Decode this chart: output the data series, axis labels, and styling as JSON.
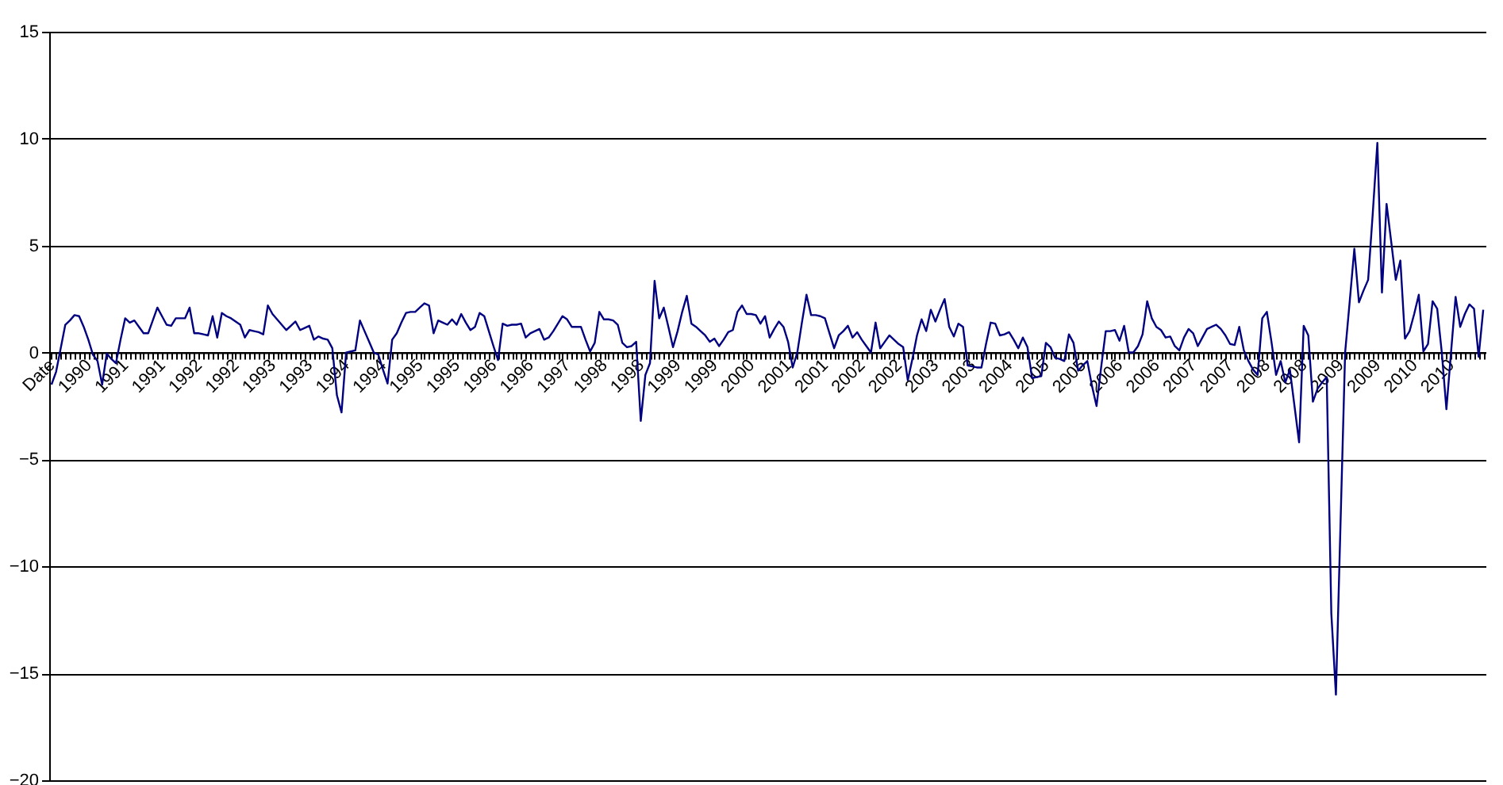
{
  "chart_data": {
    "type": "line",
    "categories": [
      "Date",
      null,
      null,
      null,
      null,
      null,
      null,
      null,
      "1990",
      null,
      null,
      null,
      null,
      null,
      null,
      null,
      "1991",
      null,
      null,
      null,
      null,
      null,
      null,
      null,
      "1991",
      null,
      null,
      null,
      null,
      null,
      null,
      null,
      "1992",
      null,
      null,
      null,
      null,
      null,
      null,
      null,
      "1992",
      null,
      null,
      null,
      null,
      null,
      null,
      null,
      "1993",
      null,
      null,
      null,
      null,
      null,
      null,
      null,
      "1993",
      null,
      null,
      null,
      null,
      null,
      null,
      null,
      "1994",
      null,
      null,
      null,
      null,
      null,
      null,
      null,
      "1994",
      null,
      null,
      null,
      null,
      null,
      null,
      null,
      "1995",
      null,
      null,
      null,
      null,
      null,
      null,
      null,
      "1995",
      null,
      null,
      null,
      null,
      null,
      null,
      null,
      "1996",
      null,
      null,
      null,
      null,
      null,
      null,
      null,
      "1996",
      null,
      null,
      null,
      null,
      null,
      null,
      null,
      "1997",
      null,
      null,
      null,
      null,
      null,
      null,
      null,
      "1998",
      null,
      null,
      null,
      null,
      null,
      null,
      null,
      "1998",
      null,
      null,
      null,
      null,
      null,
      null,
      null,
      "1999",
      null,
      null,
      null,
      null,
      null,
      null,
      null,
      "1999",
      null,
      null,
      null,
      null,
      null,
      null,
      null,
      "2000",
      null,
      null,
      null,
      null,
      null,
      null,
      null,
      "2001",
      null,
      null,
      null,
      null,
      null,
      null,
      null,
      "2001",
      null,
      null,
      null,
      null,
      null,
      null,
      null,
      "2002",
      null,
      null,
      null,
      null,
      null,
      null,
      null,
      "2002",
      null,
      null,
      null,
      null,
      null,
      null,
      null,
      "2003",
      null,
      null,
      null,
      null,
      null,
      null,
      null,
      "2003",
      null,
      null,
      null,
      null,
      null,
      null,
      null,
      "2004",
      null,
      null,
      null,
      null,
      null,
      null,
      null,
      "2005",
      null,
      null,
      null,
      null,
      null,
      null,
      null,
      "2005",
      null,
      null,
      null,
      null,
      null,
      null,
      null,
      "2006",
      null,
      null,
      null,
      null,
      null,
      null,
      null,
      "2006",
      null,
      null,
      null,
      null,
      null,
      null,
      null,
      "2007",
      null,
      null,
      null,
      null,
      null,
      null,
      null,
      "2007",
      null,
      null,
      null,
      null,
      null,
      null,
      null,
      "2008",
      null,
      null,
      null,
      null,
      null,
      null,
      null,
      "2008",
      null,
      null,
      null,
      null,
      null,
      null,
      null,
      "2009",
      null,
      null,
      null,
      null,
      null,
      null,
      null,
      "2009",
      null,
      null,
      null,
      null,
      null,
      null,
      null,
      "2010",
      null,
      null,
      null,
      null,
      null,
      null,
      null,
      "2010",
      null,
      null,
      null,
      null,
      null,
      null,
      null
    ],
    "series": [
      {
        "color": "#000080",
        "values": [
          -1.5,
          -0.9,
          0.2,
          1.3,
          1.5,
          1.75,
          1.7,
          1.2,
          0.6,
          -0.1,
          -0.4,
          -1.5,
          -0.05,
          -0.3,
          -0.5,
          0.6,
          1.6,
          1.4,
          1.5,
          1.2,
          0.9,
          0.9,
          1.5,
          2.1,
          1.7,
          1.3,
          1.25,
          1.6,
          1.6,
          1.6,
          2.1,
          0.9,
          0.9,
          0.85,
          0.8,
          1.7,
          0.7,
          1.85,
          1.7,
          1.6,
          1.45,
          1.3,
          0.7,
          1.05,
          1.0,
          0.95,
          0.85,
          2.2,
          1.8,
          1.55,
          1.3,
          1.05,
          1.25,
          1.45,
          1.05,
          1.15,
          1.25,
          0.6,
          0.75,
          0.65,
          0.6,
          0.2,
          -2.0,
          -2.8,
          0,
          0.05,
          0.1,
          1.5,
          1.0,
          0.5,
          0,
          -0.1,
          -0.8,
          -1.45,
          0.6,
          0.9,
          1.4,
          1.85,
          1.9,
          1.9,
          2.1,
          2.3,
          2.2,
          0.9,
          1.5,
          1.4,
          1.3,
          1.55,
          1.3,
          1.8,
          1.4,
          1.05,
          1.2,
          1.85,
          1.7,
          1.0,
          0.3,
          -0.35,
          1.35,
          1.25,
          1.3,
          1.3,
          1.35,
          0.7,
          0.9,
          1.0,
          1.1,
          0.6,
          0.7,
          1.0,
          1.35,
          1.7,
          1.55,
          1.2,
          1.2,
          1.2,
          0.6,
          0.05,
          0.45,
          1.9,
          1.55,
          1.55,
          1.5,
          1.3,
          0.45,
          0.25,
          0.3,
          0.5,
          -3.2,
          -1.05,
          -0.5,
          3.35,
          1.6,
          2.1,
          1.2,
          0.25,
          1.0,
          1.9,
          2.65,
          1.35,
          1.2,
          1.0,
          0.8,
          0.5,
          0.65,
          0.3,
          0.6,
          0.95,
          1.05,
          1.9,
          2.2,
          1.8,
          1.8,
          1.75,
          1.35,
          1.7,
          0.7,
          1.1,
          1.45,
          1.2,
          0.5,
          -0.7,
          0,
          1.4,
          2.7,
          1.75,
          1.75,
          1.7,
          1.6,
          0.9,
          0.2,
          0.8,
          1.0,
          1.25,
          0.7,
          0.95,
          0.6,
          0.3,
          0,
          1.4,
          0.2,
          0.5,
          0.8,
          0.6,
          0.4,
          0.25,
          -1.3,
          -0.3,
          0.8,
          1.55,
          1.0,
          2.0,
          1.45,
          2.0,
          2.5,
          1.2,
          0.75,
          1.35,
          1.2,
          -0.6,
          -0.65,
          -0.7,
          -0.7,
          0.4,
          1.4,
          1.35,
          0.8,
          0.85,
          0.95,
          0.6,
          0.2,
          0.7,
          0.25,
          -1.2,
          -1.15,
          -1.1,
          0.45,
          0.25,
          -0.25,
          -0.3,
          -0.4,
          0.85,
          0.45,
          -0.85,
          -0.6,
          -0.4,
          -1.55,
          -2.5,
          -0.7,
          1.0,
          1.0,
          1.05,
          0.55,
          1.25,
          0,
          0,
          0.3,
          0.85,
          2.4,
          1.6,
          1.2,
          1.05,
          0.7,
          0.75,
          0.3,
          0.1,
          0.7,
          1.1,
          0.9,
          0.3,
          0.7,
          1.1,
          1.2,
          1.3,
          1.1,
          0.8,
          0.4,
          0.35,
          1.2,
          0.1,
          -0.4,
          -0.8,
          -1.05,
          1.6,
          1.9,
          0.5,
          -1.05,
          -0.4,
          -1.4,
          -0.8,
          -2.5,
          -4.2,
          1.25,
          0.8,
          -2.3,
          -1.7,
          -1.4,
          -1.15,
          -12.2,
          -16,
          -8,
          0,
          2.4,
          4.85,
          2.35,
          2.9,
          3.4,
          6.5,
          9.8,
          2.8,
          6.95,
          5.2,
          3.4,
          4.3,
          0.65,
          1.0,
          1.8,
          2.7,
          0.05,
          0.4,
          2.4,
          2.05,
          0,
          -2.65,
          0,
          2.6,
          1.2,
          1.8,
          2.25,
          2.05,
          -0.2,
          2.0
        ]
      }
    ],
    "ylim": [
      -20,
      15
    ],
    "yticks": [
      -20,
      -15,
      -10,
      -5,
      0,
      5,
      10,
      15
    ],
    "grid": "y"
  }
}
